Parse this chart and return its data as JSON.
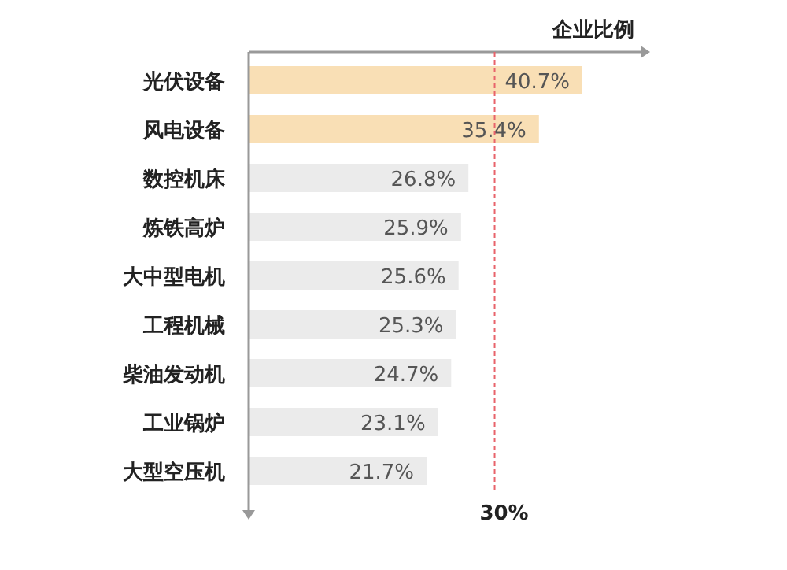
{
  "chart_data": {
    "type": "bar",
    "orientation": "horizontal",
    "xlabel": "企业比例",
    "categories": [
      "光伏设备",
      "风电设备",
      "数控机床",
      "炼铁高炉",
      "大中型电机",
      "工程机械",
      "柴油发动机",
      "工业锅炉",
      "大型空压机"
    ],
    "values": [
      40.7,
      35.4,
      26.8,
      25.9,
      25.6,
      25.3,
      24.7,
      23.1,
      21.7
    ],
    "colors": [
      "#f9dfb5",
      "#f9dfb5",
      "#ebebeb",
      "#ebebeb",
      "#ebebeb",
      "#ebebeb",
      "#ebebeb",
      "#ebebeb",
      "#ebebeb"
    ],
    "value_labels": [
      "40.7%",
      "35.4%",
      "26.8%",
      "25.9%",
      "25.6%",
      "25.3%",
      "24.7%",
      "23.1%",
      "21.7%"
    ],
    "tick_labels": "y",
    "ref_lines": [
      {
        "axis": "x",
        "value": 30,
        "label": "30%",
        "color": "#e8636b",
        "line_style": "dashed"
      }
    ]
  }
}
